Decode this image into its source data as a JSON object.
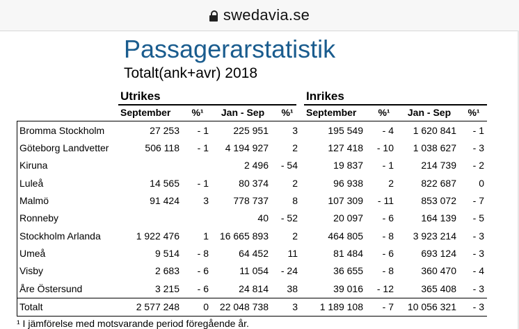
{
  "browser": {
    "url": "swedavia.se"
  },
  "header": {
    "title": "Passagerarstatistik",
    "subtitle": "Totalt(ank+avr) 2018"
  },
  "groups": {
    "intl": "Utrikes",
    "dom": "Inrikes"
  },
  "columns": {
    "sep": "September",
    "pct": "%¹",
    "jansep": "Jan - Sep"
  },
  "rows": [
    {
      "airport": "Bromma Stockholm",
      "u_sep": "27 253",
      "u_pct1": "- 1",
      "u_js": "225 951",
      "u_pct2": "3",
      "i_sep": "195 549",
      "i_pct1": "- 4",
      "i_js": "1 620 841",
      "i_pct2": "- 1"
    },
    {
      "airport": "Göteborg Landvetter",
      "u_sep": "506 118",
      "u_pct1": "- 1",
      "u_js": "4 194 927",
      "u_pct2": "2",
      "i_sep": "127 418",
      "i_pct1": "- 10",
      "i_js": "1 038 627",
      "i_pct2": "- 3"
    },
    {
      "airport": "Kiruna",
      "u_sep": "",
      "u_pct1": "",
      "u_js": "2 496",
      "u_pct2": "- 54",
      "i_sep": "19 837",
      "i_pct1": "- 1",
      "i_js": "214 739",
      "i_pct2": "- 2"
    },
    {
      "airport": "Luleå",
      "u_sep": "14 565",
      "u_pct1": "- 1",
      "u_js": "80 374",
      "u_pct2": "2",
      "i_sep": "96 938",
      "i_pct1": "2",
      "i_js": "822 687",
      "i_pct2": "0"
    },
    {
      "airport": "Malmö",
      "u_sep": "91 424",
      "u_pct1": "3",
      "u_js": "778 737",
      "u_pct2": "8",
      "i_sep": "107 309",
      "i_pct1": "- 11",
      "i_js": "853 072",
      "i_pct2": "- 7"
    },
    {
      "airport": "Ronneby",
      "u_sep": "",
      "u_pct1": "",
      "u_js": "40",
      "u_pct2": "- 52",
      "i_sep": "20 097",
      "i_pct1": "- 6",
      "i_js": "164 139",
      "i_pct2": "- 5"
    },
    {
      "airport": "Stockholm Arlanda",
      "u_sep": "1 922 476",
      "u_pct1": "1",
      "u_js": "16 665 893",
      "u_pct2": "2",
      "i_sep": "464 805",
      "i_pct1": "- 8",
      "i_js": "3 923 214",
      "i_pct2": "- 3"
    },
    {
      "airport": "Umeå",
      "u_sep": "9 514",
      "u_pct1": "- 8",
      "u_js": "64 452",
      "u_pct2": "11",
      "i_sep": "81 484",
      "i_pct1": "- 6",
      "i_js": "693 124",
      "i_pct2": "- 3"
    },
    {
      "airport": "Visby",
      "u_sep": "2 683",
      "u_pct1": "- 6",
      "u_js": "11 054",
      "u_pct2": "- 24",
      "i_sep": "36 655",
      "i_pct1": "- 8",
      "i_js": "360 470",
      "i_pct2": "- 4"
    },
    {
      "airport": "Åre Östersund",
      "u_sep": "3 215",
      "u_pct1": "- 6",
      "u_js": "24 814",
      "u_pct2": "38",
      "i_sep": "39 016",
      "i_pct1": "- 12",
      "i_js": "365 408",
      "i_pct2": "- 3"
    },
    {
      "airport": "Totalt",
      "u_sep": "2 577 248",
      "u_pct1": "0",
      "u_js": "22 048 738",
      "u_pct2": "3",
      "i_sep": "1 189 108",
      "i_pct1": "- 7",
      "i_js": "10 056 321",
      "i_pct2": "- 3"
    }
  ],
  "footnote": "¹ I jämförelse med motsvarande period föregående år."
}
